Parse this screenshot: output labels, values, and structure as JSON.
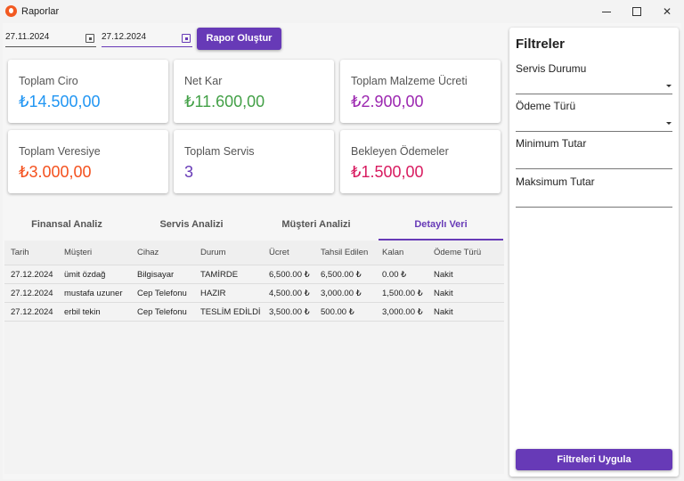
{
  "window": {
    "title": "Raporlar"
  },
  "dates": {
    "start": "27.11.2024",
    "end": "27.12.2024"
  },
  "report_button": "Rapor Oluştur",
  "cards": [
    {
      "label": "Toplam Ciro",
      "value": "₺14.500,00",
      "color": "#2196f3"
    },
    {
      "label": "Net Kar",
      "value": "₺11.600,00",
      "color": "#43a047"
    },
    {
      "label": "Toplam Malzeme Ücreti",
      "value": "₺2.900,00",
      "color": "#9c27b0"
    },
    {
      "label": "Toplam Veresiye",
      "value": "₺3.000,00",
      "color": "#f4511e"
    },
    {
      "label": "Toplam Servis",
      "value": "3",
      "color": "#673ab7"
    },
    {
      "label": "Bekleyen Ödemeler",
      "value": "₺1.500,00",
      "color": "#d81b60"
    }
  ],
  "tabs": [
    "Finansal Analiz",
    "Servis Analizi",
    "Müşteri Analizi",
    "Detaylı Veri"
  ],
  "active_tab": "Detaylı Veri",
  "table": {
    "headers": [
      "Tarih",
      "Müşteri",
      "Cihaz",
      "Durum",
      "Ücret",
      "Tahsil Edilen",
      "Kalan",
      "Ödeme Türü"
    ],
    "rows": [
      [
        "27.12.2024",
        "ümit özdağ",
        "Bilgisayar",
        "TAMİRDE",
        "6,500.00 ₺",
        "6,500.00 ₺",
        "0.00 ₺",
        "Nakit"
      ],
      [
        "27.12.2024",
        "mustafa uzuner",
        "Cep Telefonu",
        "HAZIR",
        "4,500.00 ₺",
        "3,000.00 ₺",
        "1,500.00 ₺",
        "Nakit"
      ],
      [
        "27.12.2024",
        "erbil tekin",
        "Cep Telefonu",
        "TESLİM EDİLDİ",
        "3,500.00 ₺",
        "500.00 ₺",
        "3,000.00 ₺",
        "Nakit"
      ]
    ]
  },
  "filters": {
    "title": "Filtreler",
    "service_status": "Servis Durumu",
    "payment_type": "Ödeme Türü",
    "min_amount": "Minimum Tutar",
    "max_amount": "Maksimum Tutar",
    "apply_button": "Filtreleri Uygula"
  },
  "accent_color": "#673ab7"
}
